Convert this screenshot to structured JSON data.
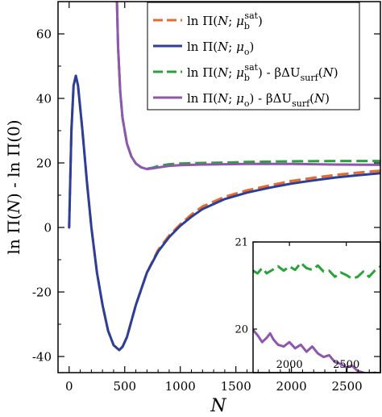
{
  "colors": {
    "orange": "#e8692a",
    "blue": "#2b3f98",
    "green": "#27a339",
    "purple": "#8e57ad",
    "axis": "#000000"
  },
  "chart_data": [
    {
      "id": "main",
      "type": "line",
      "title": "",
      "xlabel": "N",
      "ylabel": "ln Π(N) - ln Π(0)",
      "xlim": [
        -100,
        2800
      ],
      "ylim": [
        -45,
        70
      ],
      "xticks": [
        0,
        500,
        1000,
        1500,
        2000,
        2500
      ],
      "yticks": [
        -40,
        -20,
        0,
        20,
        40,
        60
      ],
      "grid": false,
      "legend_position": "top-right",
      "legend": [
        {
          "label": "ln Π(N; μ_b^sat)",
          "main": "ln Π(N; μ",
          "sub": "b",
          "sup": "sat",
          "tail": ")",
          "color_key": "orange",
          "dashed": true
        },
        {
          "label": "ln Π(N; μ_o)",
          "main": "ln Π(N; μ",
          "sub": "o",
          "sup": "",
          "tail": ")",
          "color_key": "blue",
          "dashed": false
        },
        {
          "label": "ln Π(N; μ_b^sat) - βΔU_surf(N)",
          "main": "ln Π(N; μ",
          "sub": "b",
          "sup": "sat",
          "tail": ") - βΔU",
          "tail_sub": "surf",
          "tail_end": "(N)",
          "color_key": "green",
          "dashed": true
        },
        {
          "label": "ln Π(N; μ_o) - βΔU_surf(N)",
          "main": "ln Π(N; μ",
          "sub": "o",
          "sup": "",
          "tail": ") - βΔU",
          "tail_sub": "surf",
          "tail_end": "(N)",
          "color_key": "purple",
          "dashed": false
        }
      ],
      "series": [
        {
          "name": "ln Π(N; μ_b^sat)",
          "color_key": "orange",
          "dashed": true,
          "x": [
            0,
            20,
            40,
            60,
            80,
            120,
            160,
            200,
            250,
            300,
            350,
            400,
            450,
            480,
            520,
            600,
            700,
            800,
            900,
            1000,
            1100,
            1200,
            1400,
            1600,
            1800,
            2000,
            2200,
            2400,
            2600,
            2800
          ],
          "y": [
            0,
            30,
            44,
            47,
            44,
            30,
            14,
            0,
            -14,
            -24,
            -32,
            -36.5,
            -38,
            -37,
            -34,
            -24,
            -14,
            -7,
            -2.5,
            1,
            4,
            6.5,
            9.5,
            11.5,
            13,
            14.4,
            15.4,
            16.3,
            17,
            17.6
          ]
        },
        {
          "name": "ln Π(N; μ_o)",
          "color_key": "blue",
          "dashed": false,
          "x": [
            0,
            20,
            40,
            60,
            80,
            120,
            160,
            200,
            250,
            300,
            350,
            400,
            450,
            480,
            520,
            600,
            700,
            800,
            900,
            1000,
            1100,
            1200,
            1400,
            1600,
            1800,
            2000,
            2200,
            2400,
            2600,
            2800
          ],
          "y": [
            0,
            30,
            44,
            47,
            44,
            30,
            14,
            0,
            -14,
            -24,
            -32,
            -36.5,
            -38,
            -37,
            -34,
            -24,
            -14,
            -7.5,
            -3,
            0.5,
            3.3,
            5.7,
            8.8,
            10.8,
            12.3,
            13.6,
            14.6,
            15.5,
            16.2,
            16.8
          ]
        },
        {
          "name": "ln Π(N; μ_b^sat) - βΔU_surf(N)",
          "color_key": "green",
          "dashed": true,
          "x": [
            430,
            440,
            460,
            480,
            520,
            560,
            600,
            650,
            700,
            750,
            800,
            900,
            1000,
            1200,
            1400,
            1600,
            2000,
            2400,
            2800
          ],
          "y": [
            70,
            56,
            42,
            34,
            26,
            22,
            19.8,
            18.6,
            18.2,
            18.5,
            19,
            19.6,
            19.8,
            20,
            20.1,
            20.3,
            20.5,
            20.6,
            20.6
          ]
        },
        {
          "name": "ln Π(N; μ_o) - βΔU_surf(N)",
          "color_key": "purple",
          "dashed": false,
          "x": [
            430,
            440,
            460,
            480,
            520,
            560,
            600,
            650,
            700,
            750,
            800,
            900,
            1000,
            1200,
            1400,
            1600,
            2000,
            2400,
            2800
          ],
          "y": [
            70,
            56,
            42,
            34,
            26,
            22,
            19.8,
            18.6,
            18.1,
            18.3,
            18.6,
            19.1,
            19.3,
            19.5,
            19.6,
            19.7,
            19.7,
            19.5,
            19.4
          ]
        }
      ]
    },
    {
      "id": "inset",
      "type": "line",
      "title": "",
      "xlabel": "",
      "ylabel": "",
      "xlim": [
        1680,
        2800
      ],
      "ylim": [
        19.5,
        21
      ],
      "xticks": [
        2000,
        2500
      ],
      "yticks": [
        20,
        21
      ],
      "grid": false,
      "series": [
        {
          "name": "ln Π(N; μ_b^sat) - βΔU_surf(N)",
          "color_key": "green",
          "dashed": true,
          "x": [
            1680,
            1720,
            1760,
            1800,
            1850,
            1900,
            1950,
            2000,
            2050,
            2100,
            2150,
            2200,
            2250,
            2300,
            2350,
            2400,
            2450,
            2500,
            2550,
            2600,
            2650,
            2700,
            2750,
            2800
          ],
          "y": [
            20.67,
            20.64,
            20.7,
            20.64,
            20.68,
            20.72,
            20.67,
            20.72,
            20.68,
            20.76,
            20.7,
            20.68,
            20.73,
            20.66,
            20.67,
            20.6,
            20.65,
            20.62,
            20.58,
            20.6,
            20.66,
            20.6,
            20.67,
            20.72
          ]
        },
        {
          "name": "ln Π(N; μ_o) - βΔU_surf(N)",
          "color_key": "purple",
          "dashed": false,
          "x": [
            1680,
            1720,
            1760,
            1800,
            1830,
            1860,
            1900,
            1950,
            2000,
            2050,
            2100,
            2150,
            2200,
            2250,
            2300,
            2350,
            2400,
            2450,
            2500,
            2550,
            2600,
            2650,
            2700,
            2750,
            2800
          ],
          "y": [
            19.99,
            19.93,
            19.85,
            19.9,
            19.95,
            19.88,
            19.82,
            19.8,
            19.85,
            19.78,
            19.82,
            19.74,
            19.8,
            19.72,
            19.68,
            19.7,
            19.62,
            19.6,
            19.56,
            19.58,
            19.52,
            19.5,
            19.47,
            19.5,
            19.48
          ]
        }
      ]
    }
  ]
}
